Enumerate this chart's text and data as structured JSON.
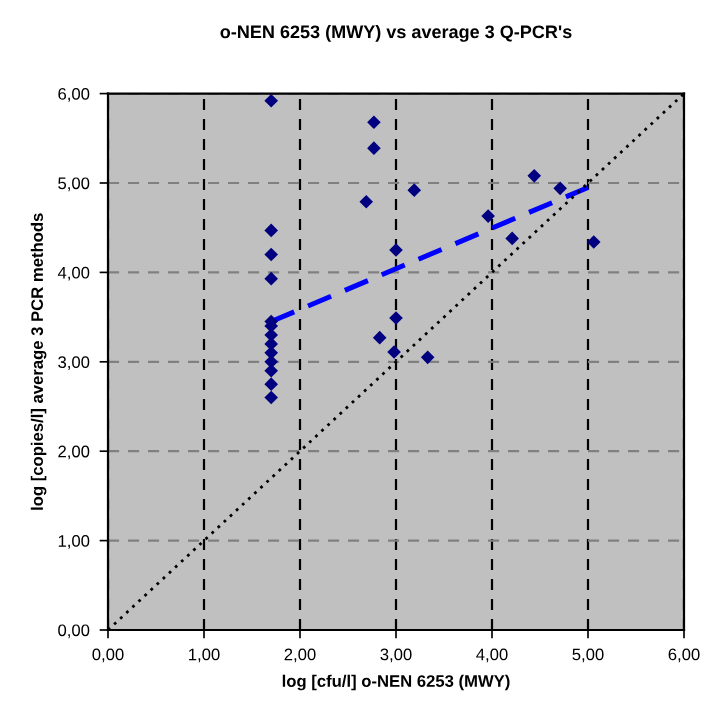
{
  "chart_data": {
    "type": "scatter",
    "title": "o-NEN 6253 (MWY) vs average 3 Q-PCR's",
    "xlabel": "log [cfu/l] o-NEN 6253 (MWY)",
    "ylabel": "log [copies/l] average 3 PCR methods",
    "xlim": [
      0,
      6
    ],
    "ylim": [
      0,
      6
    ],
    "xticks": [
      {
        "value": 0,
        "label": "0,00"
      },
      {
        "value": 1,
        "label": "1,00"
      },
      {
        "value": 2,
        "label": "2,00"
      },
      {
        "value": 3,
        "label": "3,00"
      },
      {
        "value": 4,
        "label": "4,00"
      },
      {
        "value": 5,
        "label": "5,00"
      },
      {
        "value": 6,
        "label": "6,00"
      }
    ],
    "yticks": [
      {
        "value": 0,
        "label": "0,00"
      },
      {
        "value": 1,
        "label": "1,00"
      },
      {
        "value": 2,
        "label": "2,00"
      },
      {
        "value": 3,
        "label": "3,00"
      },
      {
        "value": 4,
        "label": "4,00"
      },
      {
        "value": 5,
        "label": "5,00"
      },
      {
        "value": 6,
        "label": "6,00"
      }
    ],
    "grid": true,
    "legend": false,
    "series": [
      {
        "color": "#000080",
        "marker": "diamond",
        "x": [
          1.7,
          1.7,
          1.7,
          1.7,
          1.7,
          1.7,
          1.7,
          1.7,
          1.7,
          1.7,
          1.7,
          1.7,
          1.7,
          2.77,
          2.77,
          2.69,
          3.0,
          3.19,
          3.0,
          2.83,
          2.98,
          3.33,
          4.44,
          4.71,
          3.96,
          4.21,
          5.06
        ],
        "values": [
          5.92,
          4.47,
          4.2,
          3.93,
          3.45,
          3.4,
          3.3,
          3.2,
          3.1,
          3.0,
          2.9,
          2.75,
          2.6,
          5.68,
          5.39,
          4.79,
          4.25,
          4.92,
          3.49,
          3.27,
          3.11,
          3.05,
          5.08,
          4.94,
          4.63,
          4.38,
          4.34
        ]
      },
      {
        "type": "line",
        "color": "#0000ff",
        "line_style": "dashed",
        "x": [
          1.7,
          5.0
        ],
        "values": [
          3.45,
          4.95
        ]
      },
      {
        "type": "line",
        "color": "#000000",
        "line_style": "dotted",
        "x": [
          0,
          6
        ],
        "values": [
          0,
          6
        ]
      }
    ]
  }
}
